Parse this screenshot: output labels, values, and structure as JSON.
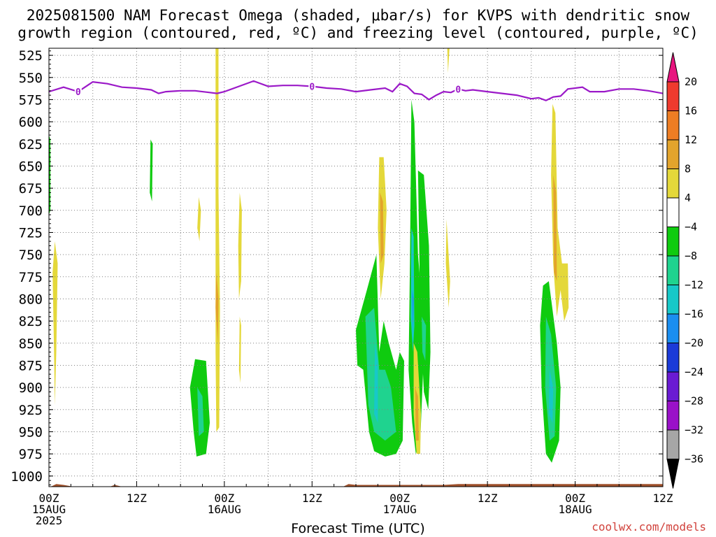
{
  "title_line1": "2025081500 NAM Forecast Omega (shaded, μbar/s) for KVPS with dendritic snow",
  "title_line2": "growth region (contoured, red, ºC) and freezing level (contoured, purple, ºC)",
  "credit": "coolwx.com/models",
  "colors": {
    "purple_line": "#9b19c8",
    "terrain": "#a0522d",
    "grid": "#808080"
  },
  "chart_data": {
    "type": "heatmap",
    "xlabel": "Forecast Time (UTC)",
    "ylabel": "",
    "y_scale": "pressure (inverted, hPa)",
    "ylim": [
      1012,
      517
    ],
    "xlim": [
      0,
      84
    ],
    "y_ticks": [
      525,
      550,
      575,
      600,
      625,
      650,
      675,
      700,
      725,
      750,
      775,
      800,
      825,
      850,
      875,
      900,
      925,
      950,
      975,
      1000
    ],
    "x_ticks": [
      {
        "hour": 0,
        "labels": [
          "00Z",
          "15AUG",
          "2025"
        ]
      },
      {
        "hour": 12,
        "labels": [
          "12Z"
        ]
      },
      {
        "hour": 24,
        "labels": [
          "00Z",
          "16AUG"
        ]
      },
      {
        "hour": 36,
        "labels": [
          "12Z"
        ]
      },
      {
        "hour": 48,
        "labels": [
          "00Z",
          "17AUG"
        ]
      },
      {
        "hour": 60,
        "labels": [
          "12Z"
        ]
      },
      {
        "hour": 72,
        "labels": [
          "00Z",
          "18AUG"
        ]
      },
      {
        "hour": 84,
        "labels": [
          "12Z"
        ]
      }
    ],
    "grid": true,
    "colorbar": {
      "unit": "μbar/s",
      "bins": [
        {
          "lo": 20,
          "hi": null,
          "color": "#e8157f"
        },
        {
          "lo": 16,
          "hi": 20,
          "color": "#ef3a2e"
        },
        {
          "lo": 12,
          "hi": 16,
          "color": "#ee7d23"
        },
        {
          "lo": 8,
          "hi": 12,
          "color": "#e3a42c"
        },
        {
          "lo": 4,
          "hi": 8,
          "color": "#e4d83a"
        },
        {
          "lo": -4,
          "hi": 4,
          "color": "#ffffff"
        },
        {
          "lo": -8,
          "hi": -4,
          "color": "#0fcb0f"
        },
        {
          "lo": -12,
          "hi": -8,
          "color": "#1fd38f"
        },
        {
          "lo": -16,
          "hi": -12,
          "color": "#17c8c8"
        },
        {
          "lo": -20,
          "hi": -16,
          "color": "#1a8ef0"
        },
        {
          "lo": -24,
          "hi": -20,
          "color": "#1b3ad8"
        },
        {
          "lo": -28,
          "hi": -24,
          "color": "#6a1bd3"
        },
        {
          "lo": -32,
          "hi": -28,
          "color": "#9a11c8"
        },
        {
          "lo": -36,
          "hi": -32,
          "color": "#a6a6a6"
        },
        {
          "lo": null,
          "hi": -36,
          "color": "#000000"
        }
      ],
      "tick_labels": [
        "20",
        "16",
        "12",
        "8",
        "4",
        "−4",
        "−8",
        "−12",
        "−16",
        "−20",
        "−24",
        "−28",
        "−32",
        "−36"
      ]
    },
    "freezing_level": {
      "label": "0",
      "label_hours": [
        4,
        36,
        56
      ],
      "hours": [
        0,
        2,
        4,
        6,
        8,
        10,
        12,
        14,
        15,
        16,
        18,
        20,
        22,
        23,
        24,
        26,
        28,
        30,
        32,
        34,
        36,
        38,
        40,
        42,
        44,
        46,
        47,
        48,
        49,
        50,
        51,
        52,
        53,
        54,
        55,
        56,
        57,
        58,
        60,
        62,
        64,
        66,
        67,
        68,
        69,
        70,
        71,
        72,
        73,
        74,
        76,
        78,
        80,
        82,
        84
      ],
      "pressure": [
        566,
        561,
        566,
        555,
        557,
        561,
        562,
        564,
        568,
        566,
        565,
        565,
        567,
        568,
        566,
        560,
        554,
        560,
        559,
        559,
        560,
        562,
        563,
        566,
        564,
        562,
        566,
        557,
        560,
        568,
        569,
        575,
        570,
        566,
        567,
        563,
        565,
        564,
        566,
        568,
        570,
        574,
        573,
        576,
        572,
        571,
        563,
        562,
        561,
        566,
        566,
        563,
        563,
        565,
        568
      ]
    },
    "omega_regions": [
      {
        "value": 6,
        "points": [
          [
            0.8,
            735
          ],
          [
            1.2,
            760
          ],
          [
            1.0,
            860
          ],
          [
            0.8,
            920
          ],
          [
            0.7,
            860
          ],
          [
            0.5,
            770
          ]
        ]
      },
      {
        "value": -6,
        "points": [
          [
            0.0,
            615
          ],
          [
            0.2,
            620
          ],
          [
            0.2,
            700
          ],
          [
            0.0,
            705
          ]
        ]
      },
      {
        "value": -6,
        "points": [
          [
            13.9,
            620
          ],
          [
            14.2,
            625
          ],
          [
            14.1,
            690
          ],
          [
            13.8,
            680
          ]
        ]
      },
      {
        "value": 6,
        "points": [
          [
            20.5,
            685
          ],
          [
            20.8,
            700
          ],
          [
            20.6,
            735
          ],
          [
            20.3,
            720
          ]
        ]
      },
      {
        "value": 6,
        "points": [
          [
            22.8,
            517
          ],
          [
            23.2,
            517
          ],
          [
            23.2,
            680
          ],
          [
            23.4,
            810
          ],
          [
            23.3,
            945
          ],
          [
            22.9,
            950
          ],
          [
            22.8,
            860
          ]
        ]
      },
      {
        "value": 10,
        "points": [
          [
            22.9,
            770
          ],
          [
            23.2,
            800
          ],
          [
            23.1,
            850
          ],
          [
            22.8,
            810
          ]
        ]
      },
      {
        "value": 6,
        "points": [
          [
            26.1,
            680
          ],
          [
            26.4,
            700
          ],
          [
            26.3,
            780
          ],
          [
            26.0,
            800
          ],
          [
            25.9,
            740
          ]
        ]
      },
      {
        "value": 6,
        "points": [
          [
            26.1,
            820
          ],
          [
            26.3,
            830
          ],
          [
            26.2,
            895
          ],
          [
            26.0,
            880
          ]
        ]
      },
      {
        "value": -6,
        "points": [
          [
            20.0,
            868
          ],
          [
            21.5,
            870
          ],
          [
            22.0,
            940
          ],
          [
            21.5,
            975
          ],
          [
            20.2,
            978
          ],
          [
            19.8,
            950
          ],
          [
            19.3,
            900
          ]
        ]
      },
      {
        "value": -10,
        "points": [
          [
            20.3,
            900
          ],
          [
            21.0,
            910
          ],
          [
            21.2,
            950
          ],
          [
            20.5,
            955
          ]
        ]
      },
      {
        "value": 6,
        "points": [
          [
            45.2,
            640
          ],
          [
            45.8,
            640
          ],
          [
            46.2,
            700
          ],
          [
            45.9,
            760
          ],
          [
            45.4,
            800
          ],
          [
            45.0,
            720
          ]
        ]
      },
      {
        "value": 10,
        "points": [
          [
            45.3,
            680
          ],
          [
            45.7,
            690
          ],
          [
            45.8,
            750
          ],
          [
            45.4,
            760
          ]
        ]
      },
      {
        "value": -6,
        "points": [
          [
            42.0,
            835
          ],
          [
            43.5,
            790
          ],
          [
            44.8,
            750
          ],
          [
            45.2,
            860
          ],
          [
            45.8,
            825
          ],
          [
            46.5,
            850
          ],
          [
            47.5,
            880
          ],
          [
            48.0,
            860
          ],
          [
            48.6,
            870
          ],
          [
            48.4,
            960
          ],
          [
            47.5,
            975
          ],
          [
            46.0,
            978
          ],
          [
            44.5,
            972
          ],
          [
            43.8,
            950
          ],
          [
            43.0,
            880
          ],
          [
            42.2,
            875
          ]
        ]
      },
      {
        "value": -10,
        "points": [
          [
            43.3,
            820
          ],
          [
            44.5,
            810
          ],
          [
            45.2,
            880
          ],
          [
            46.0,
            880
          ],
          [
            46.8,
            900
          ],
          [
            47.5,
            950
          ],
          [
            46.0,
            960
          ],
          [
            44.5,
            950
          ],
          [
            43.7,
            920
          ]
        ]
      },
      {
        "value": -14,
        "points": [
          [
            44.6,
            850
          ],
          [
            45.0,
            870
          ],
          [
            45.0,
            940
          ],
          [
            44.5,
            930
          ]
        ]
      },
      {
        "value": -6,
        "points": [
          [
            49.6,
            575
          ],
          [
            50.0,
            600
          ],
          [
            50.5,
            750
          ],
          [
            51.0,
            800
          ],
          [
            51.2,
            880
          ],
          [
            50.8,
            960
          ],
          [
            50.2,
            975
          ],
          [
            49.7,
            940
          ],
          [
            49.2,
            880
          ],
          [
            49.4,
            760
          ]
        ]
      },
      {
        "value": -14,
        "points": [
          [
            49.6,
            720
          ],
          [
            49.9,
            730
          ],
          [
            50.0,
            830
          ],
          [
            49.8,
            860
          ],
          [
            49.5,
            820
          ]
        ]
      },
      {
        "value": -18,
        "points": [
          [
            49.7,
            790
          ],
          [
            49.9,
            800
          ],
          [
            49.8,
            840
          ]
        ]
      },
      {
        "value": 6,
        "points": [
          [
            49.9,
            850
          ],
          [
            50.4,
            860
          ],
          [
            50.9,
            930
          ],
          [
            50.8,
            975
          ],
          [
            50.3,
            975
          ],
          [
            49.9,
            930
          ]
        ]
      },
      {
        "value": 10,
        "points": [
          [
            50.1,
            900
          ],
          [
            50.5,
            910
          ],
          [
            50.6,
            960
          ],
          [
            50.2,
            960
          ]
        ]
      },
      {
        "value": -6,
        "points": [
          [
            50.5,
            655
          ],
          [
            51.3,
            660
          ],
          [
            52.0,
            740
          ],
          [
            52.2,
            860
          ],
          [
            51.9,
            925
          ],
          [
            51.3,
            905
          ],
          [
            50.8,
            820
          ]
        ]
      },
      {
        "value": -10,
        "points": [
          [
            51.0,
            820
          ],
          [
            51.6,
            830
          ],
          [
            51.5,
            870
          ],
          [
            51.1,
            860
          ]
        ]
      },
      {
        "value": 6,
        "points": [
          [
            54.4,
            710
          ],
          [
            54.9,
            780
          ],
          [
            54.7,
            810
          ],
          [
            54.3,
            760
          ]
        ]
      },
      {
        "value": 6,
        "points": [
          [
            54.5,
            517
          ],
          [
            54.8,
            517
          ],
          [
            54.6,
            545
          ]
        ]
      },
      {
        "value": 6,
        "points": [
          [
            68.9,
            580
          ],
          [
            69.3,
            590
          ],
          [
            69.6,
            720
          ],
          [
            70.2,
            760
          ],
          [
            71.0,
            760
          ],
          [
            71.1,
            810
          ],
          [
            70.5,
            825
          ],
          [
            70.0,
            790
          ],
          [
            69.5,
            820
          ],
          [
            69.0,
            760
          ],
          [
            68.7,
            660
          ]
        ]
      },
      {
        "value": 10,
        "points": [
          [
            69.0,
            660
          ],
          [
            69.4,
            680
          ],
          [
            69.5,
            780
          ],
          [
            69.1,
            770
          ]
        ]
      },
      {
        "value": -6,
        "points": [
          [
            67.6,
            785
          ],
          [
            68.4,
            780
          ],
          [
            69.5,
            850
          ],
          [
            70.0,
            900
          ],
          [
            69.8,
            960
          ],
          [
            68.8,
            985
          ],
          [
            68.0,
            975
          ],
          [
            67.4,
            900
          ],
          [
            67.2,
            830
          ]
        ]
      },
      {
        "value": -10,
        "points": [
          [
            68.0,
            820
          ],
          [
            68.7,
            840
          ],
          [
            69.4,
            900
          ],
          [
            69.2,
            955
          ],
          [
            68.5,
            960
          ],
          [
            67.9,
            900
          ]
        ]
      },
      {
        "value": -14,
        "points": [
          [
            68.5,
            880
          ],
          [
            69.0,
            900
          ],
          [
            68.9,
            940
          ],
          [
            68.4,
            930
          ]
        ]
      }
    ],
    "terrain": {
      "hours": [
        0,
        1,
        2,
        4,
        6,
        8,
        9,
        10,
        12,
        14,
        16,
        18,
        20,
        22,
        24,
        26,
        28,
        30,
        32,
        34,
        36,
        38,
        40,
        41,
        42,
        44,
        46,
        48,
        50,
        52,
        54,
        56,
        58,
        60,
        62,
        64,
        66,
        68,
        70,
        72,
        74,
        76,
        78,
        80,
        82,
        84
      ],
      "pressure": [
        1013,
        1009,
        1010,
        1013,
        1013,
        1013,
        1010,
        1012,
        1013,
        1013,
        1013,
        1013,
        1013,
        1012,
        1013,
        1013,
        1013,
        1013,
        1013,
        1013,
        1013,
        1013,
        1013,
        1009,
        1010,
        1010,
        1010,
        1010,
        1010,
        1010,
        1010,
        1009,
        1009,
        1009,
        1009,
        1009,
        1009,
        1009,
        1009,
        1009,
        1009,
        1009,
        1009,
        1009,
        1009,
        1009
      ]
    }
  }
}
